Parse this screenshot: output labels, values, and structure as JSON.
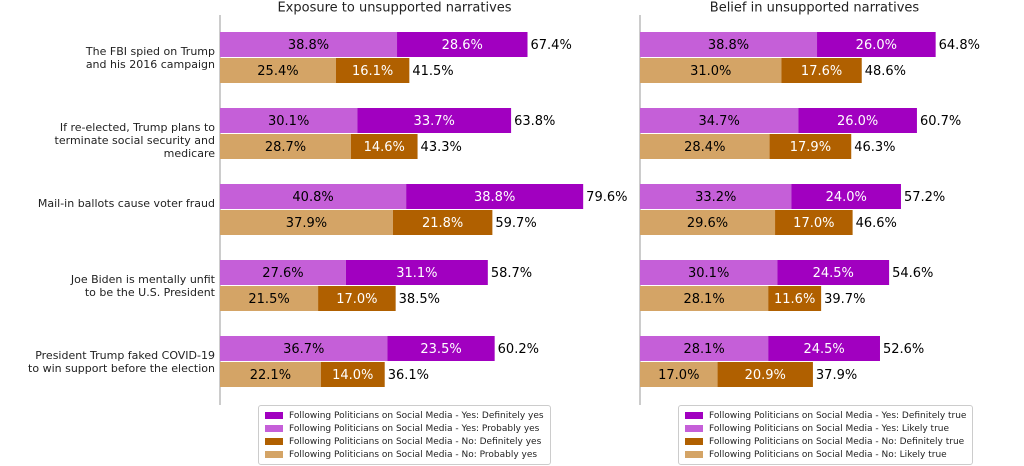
{
  "chart_data": [
    {
      "type": "bar",
      "title": "Exposure to unsupported narratives",
      "categories": [
        "The FBI spied on Trump\nand his 2016 campaign",
        "If re-elected, Trump plans to\nterminate social security and medicare",
        "Mail-in ballots cause voter fraud",
        "Joe Biden is mentally unfit\nto be the U.S. President",
        "President Trump faked COVID-19\nto win support before the election"
      ],
      "xlim": [
        0,
        80
      ],
      "series": [
        {
          "name": "Following Politicians on Social Media - Yes: Definitely yes",
          "color": "#a100c0",
          "values": [
            28.6,
            33.7,
            38.8,
            31.1,
            23.5
          ],
          "value_labels": [
            "28.6%",
            "33.7%",
            "38.8%",
            "31.1%",
            "23.5%"
          ]
        },
        {
          "name": "Following Politicians on Social Media - Yes: Probably yes",
          "color": "#c55fd8",
          "values": [
            38.8,
            30.1,
            40.8,
            27.6,
            36.7
          ],
          "value_labels": [
            "38.8%",
            "30.1%",
            "40.8%",
            "27.6%",
            "36.7%"
          ]
        },
        {
          "name": "Following Politicians on Social Media - No: Definitely yes",
          "color": "#b06000",
          "values": [
            16.1,
            14.6,
            21.8,
            17.0,
            14.0
          ],
          "value_labels": [
            "16.1%",
            "14.6%",
            "21.8%",
            "17.0%",
            "14.0%"
          ]
        },
        {
          "name": "Following Politicians on Social Media - No: Probably yes",
          "color": "#d4a466",
          "values": [
            25.4,
            28.7,
            37.9,
            21.5,
            22.1
          ],
          "value_labels": [
            "25.4%",
            "28.7%",
            "37.9%",
            "21.5%",
            "22.1%"
          ]
        }
      ],
      "totals": [
        {
          "values": [
            67.4,
            63.8,
            79.6,
            58.7,
            60.2
          ],
          "value_labels": [
            "67.4%",
            "63.8%",
            "79.6%",
            "58.7%",
            "60.2%"
          ]
        },
        {
          "values": [
            41.5,
            43.3,
            59.7,
            38.5,
            36.1
          ],
          "value_labels": [
            "41.5%",
            "43.3%",
            "59.7%",
            "38.5%",
            "36.1%"
          ]
        }
      ]
    },
    {
      "type": "bar",
      "title": "Belief in unsupported narratives",
      "xlim": [
        0,
        80
      ],
      "series": [
        {
          "name": "Following Politicians on Social Media - Yes: Definitely true",
          "color": "#a100c0",
          "values": [
            26.0,
            26.0,
            24.0,
            24.5,
            24.5
          ],
          "value_labels": [
            "26.0%",
            "26.0%",
            "24.0%",
            "24.5%",
            "24.5%"
          ]
        },
        {
          "name": "Following Politicians on Social Media - Yes: Likely true",
          "color": "#c55fd8",
          "values": [
            38.8,
            34.7,
            33.2,
            30.1,
            28.1
          ],
          "value_labels": [
            "38.8%",
            "34.7%",
            "33.2%",
            "30.1%",
            "28.1%"
          ]
        },
        {
          "name": "Following Politicians on Social Media - No: Definitely true",
          "color": "#b06000",
          "values": [
            17.6,
            17.9,
            17.0,
            11.6,
            20.9
          ],
          "value_labels": [
            "17.6%",
            "17.9%",
            "17.0%",
            "11.6%",
            "20.9%"
          ]
        },
        {
          "name": "Following Politicians on Social Media - No: Likely true",
          "color": "#d4a466",
          "values": [
            31.0,
            28.4,
            29.6,
            28.1,
            17.0
          ],
          "value_labels": [
            "31.0%",
            "28.4%",
            "29.6%",
            "28.1%",
            "17.0%"
          ]
        }
      ],
      "totals": [
        {
          "values": [
            64.8,
            60.7,
            57.2,
            54.6,
            52.6
          ],
          "value_labels": [
            "64.8%",
            "60.7%",
            "57.2%",
            "54.6%",
            "52.6%"
          ]
        },
        {
          "values": [
            48.6,
            46.3,
            46.6,
            39.7,
            37.9
          ],
          "value_labels": [
            "48.6%",
            "46.3%",
            "46.6%",
            "39.7%",
            "37.9%"
          ]
        }
      ]
    }
  ]
}
